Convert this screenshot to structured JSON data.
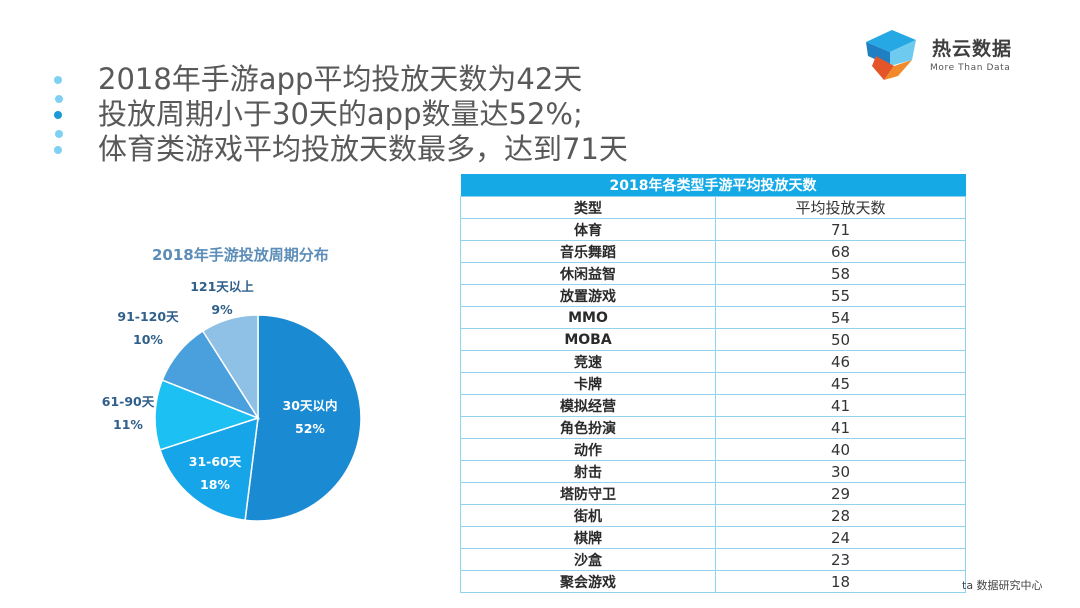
{
  "bullets": [
    "2018年手游app平均投放天数为42天",
    "投放周期小于30天的app数量达52%;",
    "体育类游戏平均投放天数最多，达到71天"
  ],
  "logo": {
    "name": "热云数据",
    "tagline": "More Than Data"
  },
  "source": "ta 数据研究中心",
  "colors": {
    "accent": "#15a9e6",
    "table_border": "#8fd3ef",
    "title_blue": "#5b8db8"
  },
  "chart_data": [
    {
      "type": "pie",
      "title": "2018年手游投放周期分布",
      "slices": [
        {
          "label": "30天以内",
          "value": 52,
          "pct": "52%",
          "color": "#1a8ad2"
        },
        {
          "label": "31-60天",
          "value": 18,
          "pct": "18%",
          "color": "#17a5ea"
        },
        {
          "label": "61-90天",
          "value": 11,
          "pct": "11%",
          "color": "#1cc0f3"
        },
        {
          "label": "91-120天",
          "value": 10,
          "pct": "10%",
          "color": "#4aa0dc"
        },
        {
          "label": "121天以上",
          "value": 9,
          "pct": "9%",
          "color": "#8fc0e6"
        }
      ]
    },
    {
      "type": "table",
      "title": "2018年各类型手游平均投放天数",
      "columns": [
        "类型",
        "平均投放天数"
      ],
      "rows": [
        [
          "体育",
          71
        ],
        [
          "音乐舞蹈",
          68
        ],
        [
          "休闲益智",
          58
        ],
        [
          "放置游戏",
          55
        ],
        [
          "MMO",
          54
        ],
        [
          "MOBA",
          50
        ],
        [
          "竞速",
          46
        ],
        [
          "卡牌",
          45
        ],
        [
          "模拟经营",
          41
        ],
        [
          "角色扮演",
          41
        ],
        [
          "动作",
          40
        ],
        [
          "射击",
          30
        ],
        [
          "塔防守卫",
          29
        ],
        [
          "街机",
          28
        ],
        [
          "棋牌",
          24
        ],
        [
          "沙盒",
          23
        ],
        [
          "聚会游戏",
          18
        ]
      ]
    }
  ]
}
